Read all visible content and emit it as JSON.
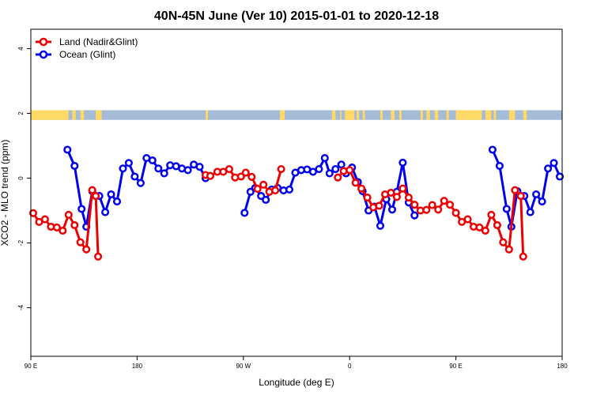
{
  "chart_data": {
    "type": "line",
    "title": "40N-45N June (Ver 10)   2015-01-01 to 2020-12-18",
    "xlabel": "Longitude (deg E)",
    "ylabel": "XCO2 - MLO trend (ppm)",
    "xlim": [
      90,
      540
    ],
    "ylim": [
      -5.5,
      4.6
    ],
    "x_ticks": [
      {
        "value": 90,
        "label": "90 E"
      },
      {
        "value": 180,
        "label": "180"
      },
      {
        "value": 270,
        "label": "90 W"
      },
      {
        "value": 360,
        "label": "0"
      },
      {
        "value": 450,
        "label": "90 E"
      },
      {
        "value": 540,
        "label": "180"
      }
    ],
    "y_ticks": [
      {
        "value": -4,
        "label": "-4"
      },
      {
        "value": -2,
        "label": "-2"
      },
      {
        "value": 0,
        "label": "0"
      },
      {
        "value": 2,
        "label": "2"
      },
      {
        "value": 4,
        "label": "4"
      }
    ],
    "legend": {
      "placement": "top-left",
      "entries": [
        {
          "label": "Land (Nadir&Glint)",
          "color": "#ee0000"
        },
        {
          "label": "Ocean (Glint)",
          "color": "#0000ee"
        }
      ]
    },
    "land_ocean_strip": {
      "y_range": [
        1.8,
        2.1
      ],
      "land_color": "#ffd966",
      "ocean_color": "#a4bcd8",
      "land_segments": [
        [
          90,
          122
        ],
        [
          125,
          128
        ],
        [
          132,
          135
        ],
        [
          145,
          150
        ],
        [
          238,
          240
        ],
        [
          301,
          305
        ],
        [
          345,
          348
        ],
        [
          352,
          353
        ],
        [
          356,
          364
        ],
        [
          366,
          368
        ],
        [
          371,
          373
        ],
        [
          386,
          388
        ],
        [
          395,
          398
        ],
        [
          402,
          404
        ],
        [
          420,
          422
        ],
        [
          425,
          428
        ],
        [
          432,
          435
        ],
        [
          442,
          444
        ],
        [
          450,
          472
        ],
        [
          475,
          480
        ],
        [
          482,
          484
        ],
        [
          495,
          500
        ],
        [
          507,
          510
        ]
      ],
      "strip_x_range": [
        90,
        540
      ]
    },
    "series": [
      {
        "name": "Land (Nadir&Glint)",
        "color": "#ee0000",
        "segments": [
          {
            "x": [
              92,
              97,
              102,
              107,
              112,
              117,
              122,
              127,
              132,
              137,
              142,
              145,
              147
            ],
            "y": [
              -1.08,
              -1.35,
              -1.27,
              -1.5,
              -1.52,
              -1.62,
              -1.13,
              -1.45,
              -1.98,
              -2.2,
              -0.37,
              -0.55,
              -2.42
            ]
          },
          {
            "x": [
              238,
              242,
              248,
              253,
              258,
              263,
              268,
              272,
              277,
              282,
              287,
              292,
              297,
              302
            ],
            "y": [
              0.1,
              0.07,
              0.2,
              0.2,
              0.28,
              0.02,
              0.05,
              0.17,
              0.04,
              -0.33,
              -0.2,
              -0.42,
              -0.38,
              0.28
            ]
          },
          {
            "x": [
              350,
              355,
              360,
              365,
              370,
              375,
              380,
              385,
              390,
              395,
              400,
              405,
              410,
              415,
              420,
              425,
              430,
              435,
              440,
              445,
              450,
              455,
              460,
              465,
              470,
              475,
              480,
              485,
              490,
              495,
              500,
              505,
              507
            ],
            "y": [
              0.02,
              0.22,
              0.25,
              -0.14,
              -0.32,
              -0.6,
              -0.9,
              -0.85,
              -0.5,
              -0.45,
              -0.58,
              -0.32,
              -0.6,
              -0.82,
              -1.0,
              -0.98,
              -0.83,
              -0.97,
              -0.7,
              -0.82,
              -1.07,
              -1.35,
              -1.27,
              -1.5,
              -1.52,
              -1.62,
              -1.13,
              -1.45,
              -1.98,
              -2.2,
              -0.37,
              -0.55,
              -2.42
            ]
          }
        ]
      },
      {
        "name": "Ocean (Glint)",
        "color": "#0000ee",
        "segments": [
          {
            "x": [
              121,
              127,
              133,
              137,
              142,
              148,
              153,
              158,
              163,
              168,
              173,
              178,
              183,
              188,
              193,
              198,
              203,
              208,
              213,
              218,
              223,
              228,
              233,
              238
            ],
            "y": [
              0.88,
              0.38,
              -0.95,
              -1.5,
              -0.4,
              -0.55,
              -1.05,
              -0.5,
              -0.72,
              0.3,
              0.47,
              0.05,
              -0.15,
              0.62,
              0.55,
              0.3,
              0.15,
              0.4,
              0.37,
              0.3,
              0.25,
              0.42,
              0.35,
              0.0
            ]
          },
          {
            "x": [
              271,
              276,
              280,
              285,
              289,
              294,
              299,
              304,
              309,
              314,
              319,
              324,
              329,
              334,
              339,
              343,
              348,
              353,
              357,
              362,
              367,
              371,
              376,
              381,
              386,
              391,
              396,
              400,
              405,
              410,
              415
            ],
            "y": [
              -1.07,
              -0.42,
              -0.3,
              -0.55,
              -0.67,
              -0.35,
              -0.3,
              -0.38,
              -0.35,
              0.17,
              0.25,
              0.27,
              0.2,
              0.28,
              0.62,
              0.15,
              0.28,
              0.42,
              0.15,
              0.33,
              -0.12,
              -0.4,
              -1.0,
              -0.88,
              -1.47,
              -0.65,
              -0.97,
              -0.42,
              0.48,
              -0.75,
              -1.15
            ]
          },
          {
            "x": [
              481,
              487,
              493,
              497,
              502,
              508,
              513,
              518,
              523,
              528,
              533,
              538
            ],
            "y": [
              0.88,
              0.38,
              -0.95,
              -1.5,
              -0.4,
              -0.55,
              -1.05,
              -0.5,
              -0.72,
              0.3,
              0.47,
              0.05
            ]
          }
        ]
      }
    ]
  }
}
